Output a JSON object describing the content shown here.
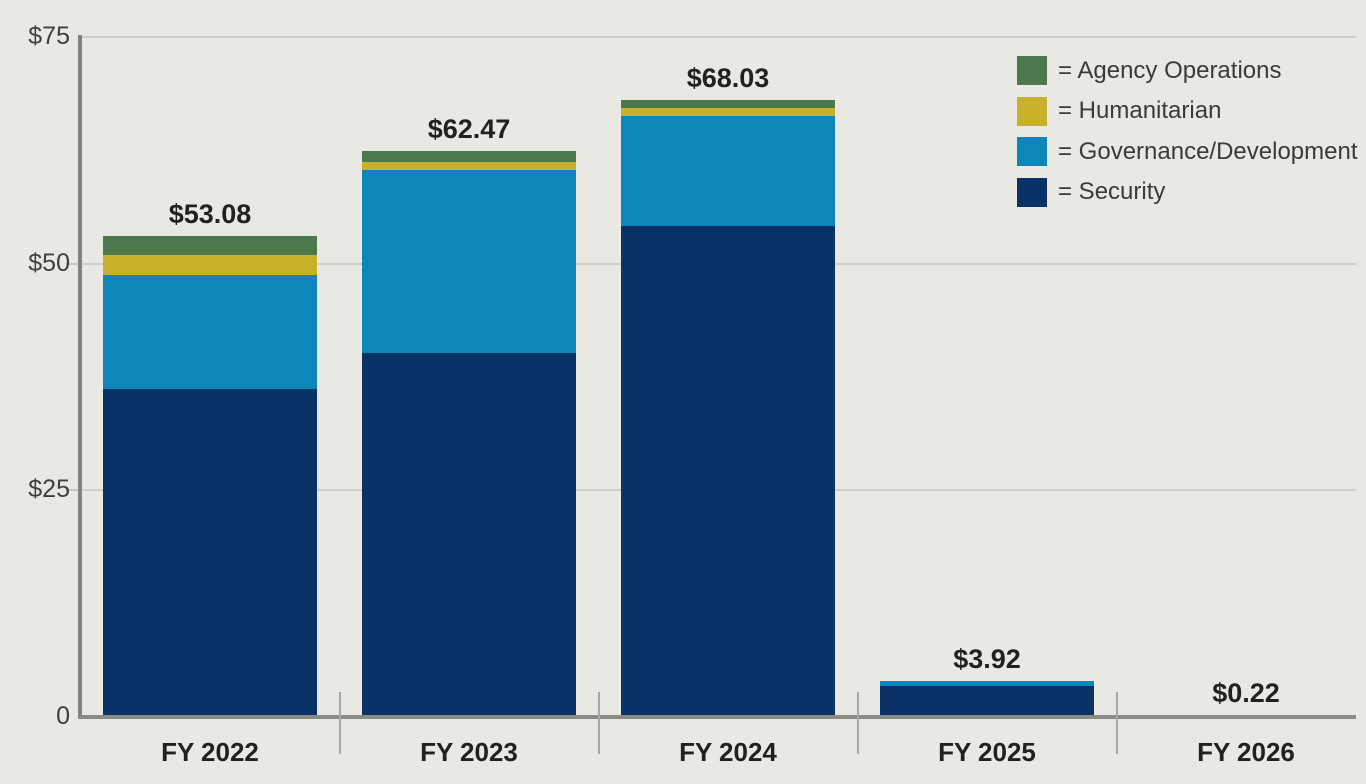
{
  "chart_data": {
    "type": "bar",
    "stacked": true,
    "categories": [
      "FY 2022",
      "FY 2023",
      "FY 2024",
      "FY 2025",
      "FY 2026"
    ],
    "series": [
      {
        "name": "Security",
        "color": "#0a3266",
        "values": [
          36.18,
          40.2,
          54.2,
          3.4,
          0.22
        ]
      },
      {
        "name": "Governance/Development",
        "color": "#0f86ba",
        "values": [
          12.6,
          20.1,
          12.1,
          0.52,
          0
        ]
      },
      {
        "name": "Humanitarian",
        "color": "#c7b12a",
        "values": [
          2.2,
          0.92,
          0.86,
          0,
          0
        ]
      },
      {
        "name": "Agency Operations",
        "color": "#4c784e",
        "values": [
          2.1,
          1.25,
          0.87,
          0,
          0
        ]
      }
    ],
    "totals": [
      53.08,
      62.47,
      68.03,
      3.92,
      0.22
    ],
    "total_labels": [
      "$53.08",
      "$62.47",
      "$68.03",
      "$3.92",
      "$0.22"
    ],
    "y_axis": {
      "range": [
        0,
        75
      ],
      "grid": true,
      "ticks": [
        {
          "value": 75,
          "label": "$75",
          "tick_mark": false
        },
        {
          "value": 50,
          "label": "$50",
          "tick_mark": true
        },
        {
          "value": 25,
          "label": "$25",
          "tick_mark": true
        },
        {
          "value": 0,
          "label": "0",
          "tick_mark": false
        }
      ]
    },
    "legend": {
      "position": "top-right",
      "items": [
        {
          "label": "= Agency Operations",
          "color": "#4c784e"
        },
        {
          "label": "= Humanitarian",
          "color": "#c7b12a"
        },
        {
          "label": "= Governance/Development",
          "color": "#0f86ba"
        },
        {
          "label": "= Security",
          "color": "#0a3266"
        }
      ]
    }
  },
  "colors": {
    "background": "#eae8e2",
    "gridline": "#cfcec8",
    "axis_y": "#82827c",
    "axis_x": "#8b8b85",
    "divider": "#a8a7a1",
    "data_label_text": "#212121",
    "axis_label_text": "#3f3f3f",
    "legend_text": "#3a3a3a"
  }
}
